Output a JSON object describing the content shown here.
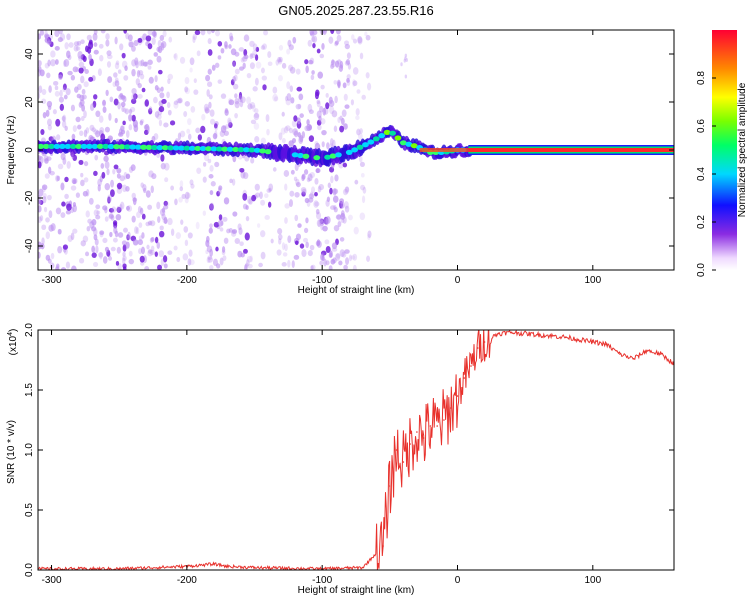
{
  "title": "GN05.2025.287.23.55.R16",
  "chart_data": [
    {
      "type": "heatmap",
      "name": "spectrogram",
      "xlabel": "Height of straight line (km)",
      "ylabel": "Frequency (Hz)",
      "xlim": [
        -310,
        160
      ],
      "ylim": [
        -50,
        50
      ],
      "xticks": [
        -300,
        -200,
        -100,
        0,
        100
      ],
      "yticks": [
        -40,
        -20,
        0,
        20,
        40
      ],
      "colorbar": {
        "label": "Normalized spectral amplitude",
        "range": [
          0.0,
          1.0
        ],
        "ticks": [
          "0.0",
          "0.2",
          "0.4",
          "0.6",
          "0.8"
        ]
      },
      "ridge": {
        "x": [
          -310,
          -260,
          -220,
          -180,
          -150,
          -120,
          -100,
          -80,
          -65,
          -50,
          -40,
          -30,
          -20,
          -10,
          0,
          10,
          160
        ],
        "frequency": [
          1.5,
          1.5,
          1.0,
          0.5,
          0.0,
          -2.0,
          -3.5,
          -1.0,
          3.0,
          8.0,
          3.0,
          1.5,
          -1.0,
          -1.0,
          0.0,
          0.0,
          0.0
        ]
      },
      "bright_bands": [
        [
          -310,
          -215
        ],
        [
          -185,
          -155
        ],
        [
          -125,
          -80
        ]
      ]
    },
    {
      "type": "line",
      "name": "snr",
      "xlabel": "Height of straight line (km)",
      "ylabel": "SNR (10 * v/v)",
      "y_multiplier": "(x10^4)",
      "xlim": [
        -310,
        160
      ],
      "ylim": [
        0,
        2.0
      ],
      "xticks": [
        -300,
        -200,
        -100,
        0,
        100
      ],
      "yticks": [
        0.0,
        0.5,
        1.0,
        1.5,
        2.0
      ],
      "color": "#e8312c",
      "series": [
        {
          "x": [
            -310,
            -250,
            -200,
            -180,
            -170,
            -150,
            -100,
            -70,
            -55,
            -50,
            -45,
            -40,
            -35,
            -30,
            -25,
            -20,
            -15,
            -10,
            -5,
            0,
            5,
            10,
            15,
            20,
            30,
            40,
            60,
            80,
            100,
            110,
            120,
            130,
            140,
            150,
            160
          ],
          "values": [
            0.01,
            0.01,
            0.03,
            0.05,
            0.03,
            0.02,
            0.01,
            0.02,
            0.2,
            0.7,
            1.0,
            0.9,
            1.05,
            1.15,
            1.1,
            1.2,
            1.2,
            1.25,
            1.35,
            1.45,
            1.6,
            1.7,
            1.85,
            1.9,
            1.97,
            1.98,
            1.96,
            1.94,
            1.9,
            1.88,
            1.8,
            1.76,
            1.83,
            1.8,
            1.72
          ]
        }
      ]
    }
  ]
}
